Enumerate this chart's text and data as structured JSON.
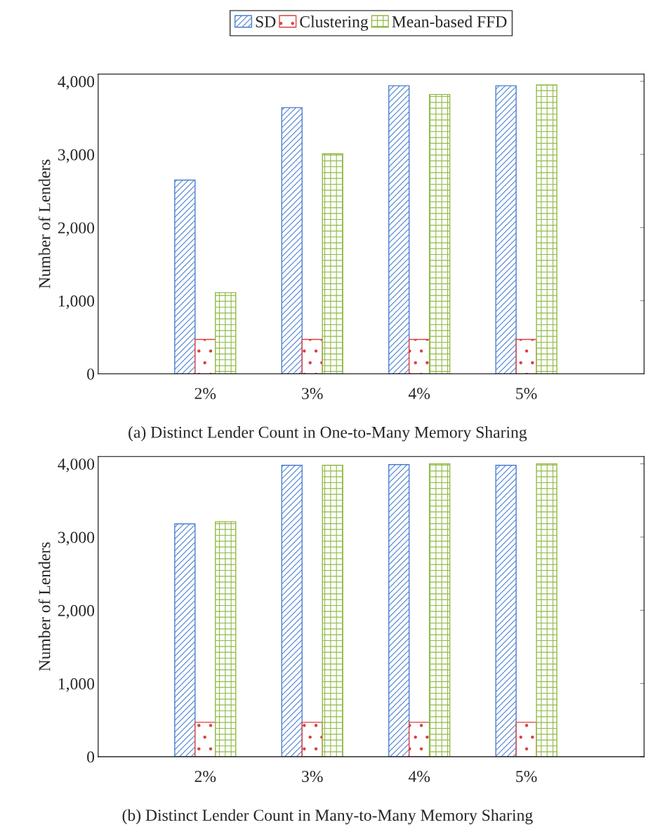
{
  "chart_data": [
    {
      "type": "bar",
      "title": "(a) Distinct Lender Count in One-to-Many Memory Sharing",
      "ylabel": "Number of Lenders",
      "categories": [
        "2%",
        "3%",
        "4%",
        "5%"
      ],
      "series": [
        {
          "name": "SD",
          "color": "#4a7fd1",
          "values": [
            2650,
            3640,
            3940,
            3940
          ]
        },
        {
          "name": "Clustering",
          "color": "#d9403f",
          "values": [
            470,
            470,
            470,
            470
          ]
        },
        {
          "name": "Mean-based FFD",
          "color": "#8fba45",
          "values": [
            1110,
            3010,
            3820,
            3950
          ]
        }
      ],
      "ylim": [
        0,
        4100
      ],
      "yticks": [
        0,
        {
          "value": 1000,
          "label": "1,000"
        },
        {
          "value": 2000,
          "label": "2,000"
        },
        {
          "value": 3000,
          "label": "3,000"
        },
        {
          "value": 4000,
          "label": "4,000"
        }
      ],
      "grid": false,
      "legend": "top"
    },
    {
      "type": "bar",
      "title": "(b) Distinct Lender Count in Many-to-Many Memory Sharing",
      "ylabel": "Number of Lenders",
      "categories": [
        "2%",
        "3%",
        "4%",
        "5%"
      ],
      "series": [
        {
          "color": "#4a7fd1",
          "values": [
            3180,
            3980,
            3990,
            3980
          ]
        },
        {
          "color": "#d9403f",
          "values": [
            470,
            470,
            470,
            470
          ]
        },
        {
          "color": "#8fba45",
          "values": [
            3210,
            3980,
            4000,
            4000
          ]
        }
      ],
      "ylim": [
        0,
        4100
      ],
      "yticks": [
        0,
        {
          "value": 1000,
          "label": "1,000"
        },
        {
          "value": 2000,
          "label": "2,000"
        },
        {
          "value": 3000,
          "label": "3,000"
        },
        {
          "value": 4000,
          "label": "4,000"
        }
      ],
      "grid": false,
      "legend": false
    }
  ]
}
